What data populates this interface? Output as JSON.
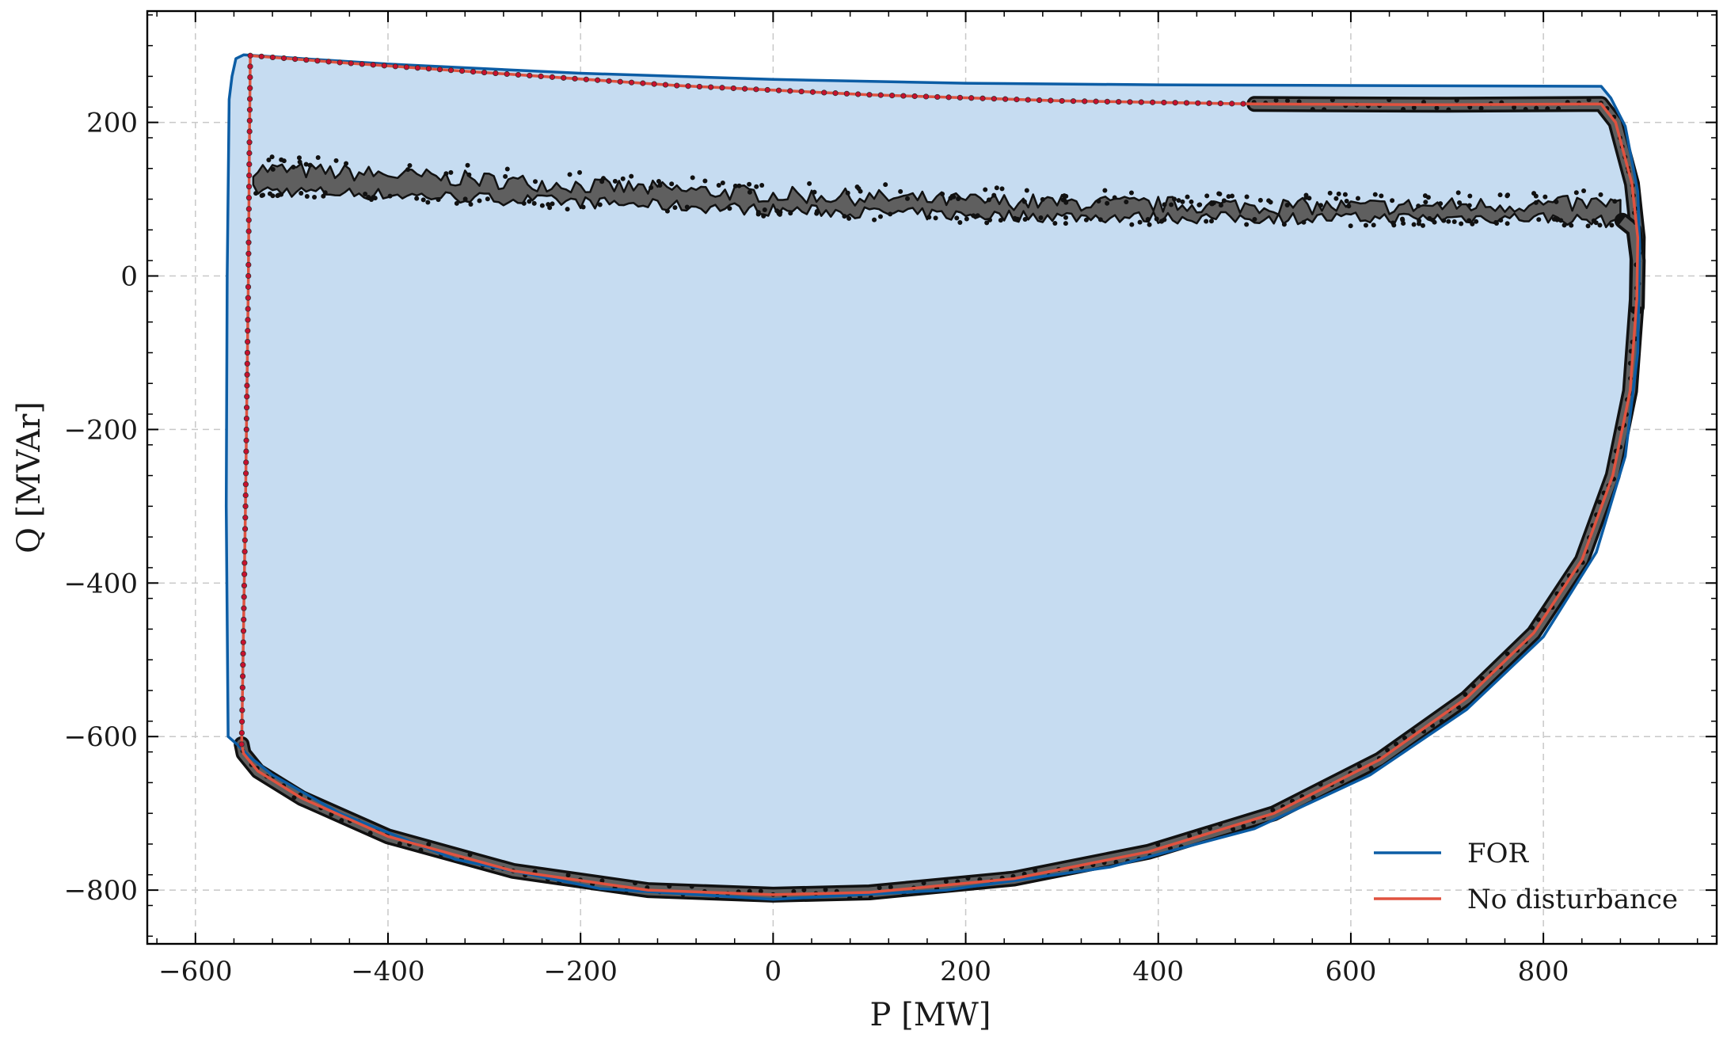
{
  "chart_data": {
    "type": "line",
    "title": "",
    "xlabel": "P [MW]",
    "ylabel": "Q [MVAr]",
    "xlim": [
      -650,
      980
    ],
    "ylim": [
      -870,
      345
    ],
    "xticks": [
      -600,
      -400,
      -200,
      0,
      200,
      400,
      600,
      800
    ],
    "yticks": [
      -800,
      -600,
      -400,
      -200,
      0,
      200
    ],
    "xtick_labels": [
      "−600",
      "−400",
      "−200",
      "0",
      "200",
      "400",
      "600",
      "800"
    ],
    "ytick_labels": [
      "−800",
      "−600",
      "−400",
      "−200",
      "0",
      "200"
    ],
    "grid": true,
    "legend": {
      "placement": "lower-right",
      "entries": [
        "FOR",
        "No disturbance"
      ]
    },
    "colors": {
      "for_line": "#0C5DA5",
      "for_fill": "#C6DCF1",
      "no_disturbance": "#E0523F",
      "no_disturbance_markers": "#C8102E",
      "scenarios": "#5F5F5F",
      "scenario_markers": "#111111"
    },
    "series": [
      {
        "name": "FOR",
        "role": "boundary",
        "points": [
          [
            -555,
            -612
          ],
          [
            -566,
            -600
          ],
          [
            -568,
            -300
          ],
          [
            -567,
            0
          ],
          [
            -565,
            230
          ],
          [
            -562,
            260
          ],
          [
            -558,
            283
          ],
          [
            -550,
            288
          ],
          [
            -400,
            276
          ],
          [
            -200,
            264
          ],
          [
            0,
            256
          ],
          [
            200,
            251
          ],
          [
            400,
            249
          ],
          [
            600,
            248
          ],
          [
            860,
            247
          ],
          [
            870,
            232
          ],
          [
            885,
            195
          ],
          [
            898,
            110
          ],
          [
            900,
            40
          ],
          [
            898,
            -100
          ],
          [
            885,
            -235
          ],
          [
            855,
            -360
          ],
          [
            800,
            -470
          ],
          [
            720,
            -565
          ],
          [
            620,
            -650
          ],
          [
            500,
            -720
          ],
          [
            350,
            -770
          ],
          [
            180,
            -800
          ],
          [
            0,
            -812
          ],
          [
            -180,
            -798
          ],
          [
            -330,
            -760
          ],
          [
            -450,
            -700
          ],
          [
            -520,
            -650
          ],
          [
            -545,
            -625
          ],
          [
            -555,
            -612
          ]
        ]
      },
      {
        "name": "No disturbance",
        "role": "reference",
        "points": [
          [
            -552,
            -610
          ],
          [
            -548,
            -300
          ],
          [
            -545,
            0
          ],
          [
            -544,
            160
          ],
          [
            -543,
            287
          ],
          [
            -450,
            278
          ],
          [
            -300,
            265
          ],
          [
            -100,
            248
          ],
          [
            100,
            236
          ],
          [
            300,
            228
          ],
          [
            500,
            224
          ],
          [
            700,
            223
          ],
          [
            860,
            224
          ],
          [
            875,
            200
          ],
          [
            892,
            120
          ],
          [
            898,
            50
          ],
          [
            897,
            -30
          ],
          [
            890,
            -150
          ],
          [
            872,
            -260
          ],
          [
            840,
            -370
          ],
          [
            790,
            -465
          ],
          [
            720,
            -550
          ],
          [
            630,
            -630
          ],
          [
            520,
            -700
          ],
          [
            390,
            -750
          ],
          [
            250,
            -785
          ],
          [
            100,
            -803
          ],
          [
            0,
            -806
          ],
          [
            -130,
            -800
          ],
          [
            -270,
            -775
          ],
          [
            -400,
            -730
          ],
          [
            -490,
            -680
          ],
          [
            -535,
            -645
          ],
          [
            -550,
            -622
          ],
          [
            -552,
            -610
          ]
        ]
      },
      {
        "name": "",
        "role": "disturbance-scenarios",
        "upper_band": {
          "x": [
            -540,
            -400,
            -200,
            0,
            200,
            400,
            600,
            800,
            880
          ],
          "q_high": [
            140,
            132,
            118,
            106,
            98,
            93,
            90,
            93,
            95
          ],
          "q_low": [
            112,
            106,
            96,
            86,
            79,
            76,
            75,
            76,
            70
          ]
        }
      }
    ]
  }
}
